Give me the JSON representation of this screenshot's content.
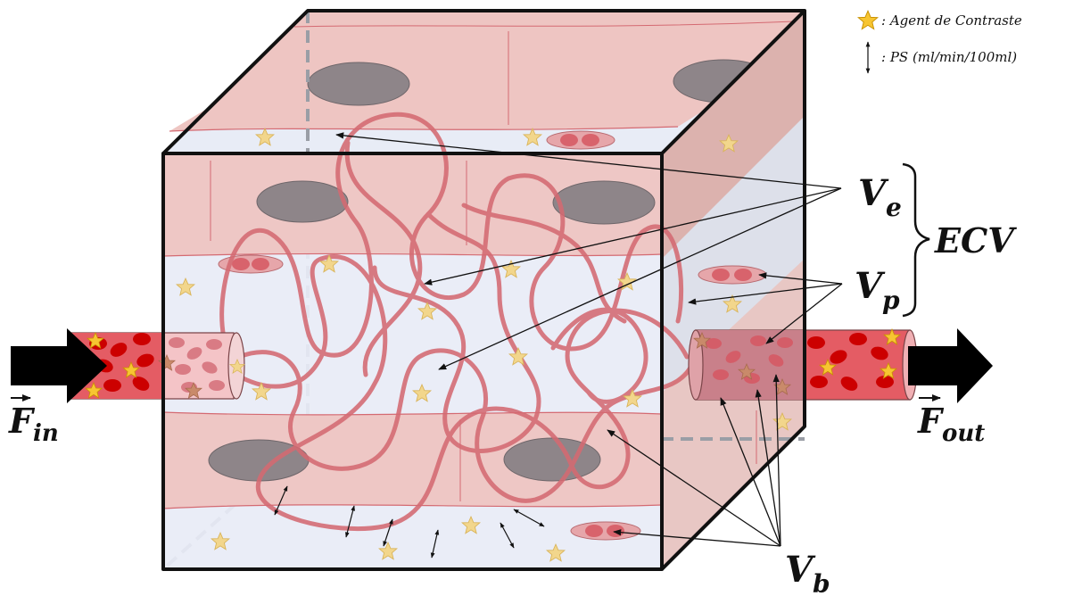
{
  "legend": {
    "contrast_label": ": Agent de Contraste",
    "ps_label": ": PS (ml/min/100ml)"
  },
  "labels": {
    "ve_main": "V",
    "ve_sub": "e",
    "vp_main": "V",
    "vp_sub": "p",
    "vb_main": "V",
    "vb_sub": "b",
    "ecv": "ECV",
    "fin_main": "F",
    "fin_sub": "in",
    "fout_main": "F",
    "fout_sub": "out"
  },
  "colors": {
    "tissue": "#eec5c2",
    "tissue_dark": "#d9a3a0",
    "interstitium": "#e8ecf6",
    "nucleus": "#8e8589",
    "capillary": "#d46a72",
    "rbc": "#d8636c",
    "rbc_dark": "#cc0000",
    "star": "#f0d58a",
    "frame": "#111111"
  }
}
